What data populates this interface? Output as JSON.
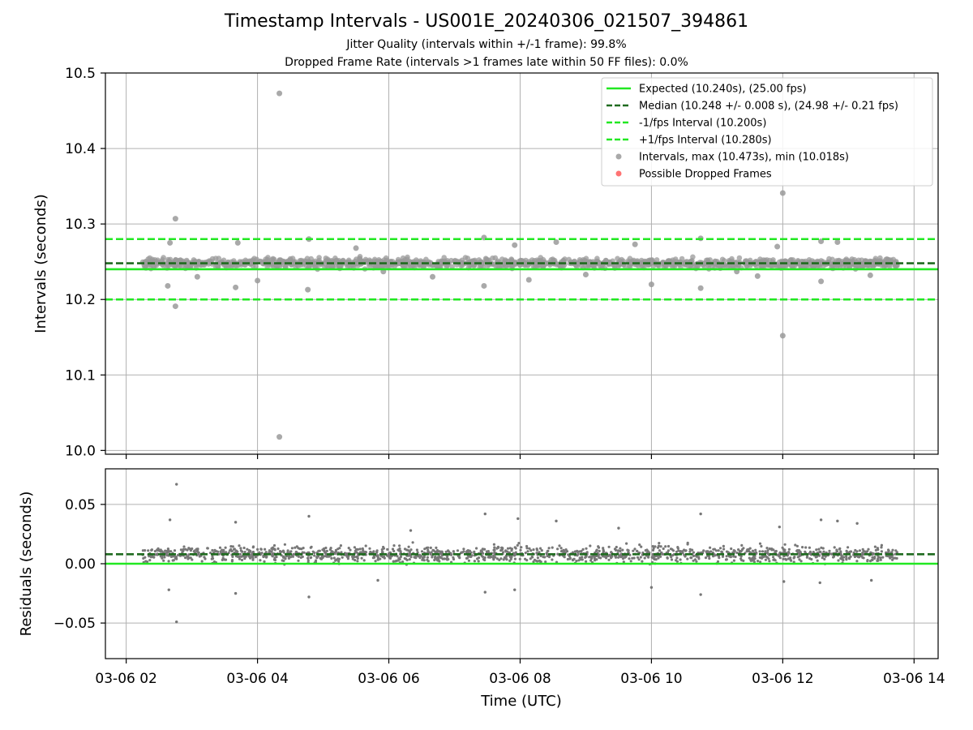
{
  "chart_data": [
    {
      "type": "scatter",
      "title": "Timestamp Intervals - US001E_20240306_021507_394861",
      "subtitles": [
        "Jitter Quality (intervals within +/-1 frame): 99.8%",
        "Dropped Frame Rate (intervals >1 frames late within 50 FF files): 0.0%"
      ],
      "xlabel": "",
      "ylabel": "Intervals (seconds)",
      "xlim": [
        "2024-03-06 01:41",
        "2024-03-06 14:22"
      ],
      "ylim": [
        9.995,
        10.5
      ],
      "x_ticks": [
        "2024-03-06 02:00",
        "2024-03-06 04:00",
        "2024-03-06 06:00",
        "2024-03-06 08:00",
        "2024-03-06 10:00",
        "2024-03-06 12:00",
        "2024-03-06 14:00"
      ],
      "y_ticks": [
        "10.0",
        "10.1",
        "10.2",
        "10.3",
        "10.4",
        "10.5"
      ],
      "grid": true,
      "legend_position": "top-right",
      "legend": [
        {
          "label": "Expected (10.240s), (25.00 fps)",
          "style": "solid",
          "color": "#22e822"
        },
        {
          "label": "Median (10.248 +/- 0.008 s), (24.98 +/- 0.21 fps)",
          "style": "dashed",
          "color": "#1f6b1f"
        },
        {
          "label": "-1/fps Interval (10.200s)",
          "style": "dashed",
          "color": "#22e822"
        },
        {
          "label": "+1/fps Interval (10.280s)",
          "style": "dashed",
          "color": "#22e822"
        },
        {
          "label": "Intervals, max (10.473s), min (10.018s)",
          "style": "marker",
          "color": "#9a9a9a"
        },
        {
          "label": "Possible Dropped Frames",
          "style": "marker",
          "color": "#ff5a5a"
        }
      ],
      "hlines": [
        {
          "name": "expected",
          "y": 10.24,
          "color": "#22e822",
          "style": "solid"
        },
        {
          "name": "median",
          "y": 10.248,
          "color": "#1f6b1f",
          "style": "dashed"
        },
        {
          "name": "minus-1-fps",
          "y": 10.2,
          "color": "#22e822",
          "style": "dashed"
        },
        {
          "name": "plus-1-fps",
          "y": 10.28,
          "color": "#22e822",
          "style": "dashed"
        }
      ],
      "scatter_band": {
        "x_start": "2024-03-06 02:15",
        "x_end": "2024-03-06 13:45",
        "center": 10.248,
        "half_width": 0.006,
        "count": 1300
      },
      "outliers": [
        {
          "x": "2024-03-06 04:20",
          "y": 10.473
        },
        {
          "x": "2024-03-06 04:20",
          "y": 10.018
        },
        {
          "x": "2024-03-06 12:00",
          "y": 10.341
        },
        {
          "x": "2024-03-06 12:00",
          "y": 10.152
        },
        {
          "x": "2024-03-06 02:45",
          "y": 10.307
        },
        {
          "x": "2024-03-06 02:45",
          "y": 10.191
        },
        {
          "x": "2024-03-06 02:40",
          "y": 10.275
        },
        {
          "x": "2024-03-06 02:38",
          "y": 10.218
        },
        {
          "x": "2024-03-06 03:42",
          "y": 10.275
        },
        {
          "x": "2024-03-06 03:40",
          "y": 10.216
        },
        {
          "x": "2024-03-06 04:47",
          "y": 10.28
        },
        {
          "x": "2024-03-06 04:46",
          "y": 10.213
        },
        {
          "x": "2024-03-06 07:27",
          "y": 10.282
        },
        {
          "x": "2024-03-06 07:27",
          "y": 10.218
        },
        {
          "x": "2024-03-06 08:33",
          "y": 10.276
        },
        {
          "x": "2024-03-06 10:00",
          "y": 10.22
        },
        {
          "x": "2024-03-06 10:45",
          "y": 10.281
        },
        {
          "x": "2024-03-06 10:45",
          "y": 10.215
        },
        {
          "x": "2024-03-06 12:35",
          "y": 10.277
        },
        {
          "x": "2024-03-06 12:35",
          "y": 10.224
        },
        {
          "x": "2024-03-06 12:50",
          "y": 10.276
        },
        {
          "x": "2024-03-06 03:05",
          "y": 10.23
        },
        {
          "x": "2024-03-06 04:00",
          "y": 10.225
        },
        {
          "x": "2024-03-06 06:40",
          "y": 10.23
        },
        {
          "x": "2024-03-06 09:00",
          "y": 10.233
        },
        {
          "x": "2024-03-06 11:55",
          "y": 10.27
        },
        {
          "x": "2024-03-06 11:37",
          "y": 10.231
        },
        {
          "x": "2024-03-06 05:30",
          "y": 10.268
        },
        {
          "x": "2024-03-06 09:45",
          "y": 10.273
        },
        {
          "x": "2024-03-06 08:08",
          "y": 10.226
        },
        {
          "x": "2024-03-06 11:18",
          "y": 10.237
        },
        {
          "x": "2024-03-06 13:20",
          "y": 10.232
        },
        {
          "x": "2024-03-06 05:55",
          "y": 10.237
        },
        {
          "x": "2024-03-06 07:55",
          "y": 10.272
        }
      ]
    },
    {
      "type": "scatter",
      "title": "",
      "xlabel": "Time (UTC)",
      "ylabel": "Residuals (seconds)",
      "xlim": [
        "2024-03-06 01:41",
        "2024-03-06 14:22"
      ],
      "ylim": [
        -0.08,
        0.08
      ],
      "x_ticks": [
        "2024-03-06 02:00",
        "2024-03-06 04:00",
        "2024-03-06 06:00",
        "2024-03-06 08:00",
        "2024-03-06 10:00",
        "2024-03-06 12:00",
        "2024-03-06 14:00"
      ],
      "x_tick_labels": [
        "03-06 02",
        "03-06 04",
        "03-06 06",
        "03-06 08",
        "03-06 10",
        "03-06 12",
        "03-06 14"
      ],
      "y_ticks": [
        -0.05,
        0.0,
        0.05
      ],
      "y_tick_labels": [
        "−0.05",
        "0.00",
        "0.05"
      ],
      "grid": true,
      "hlines": [
        {
          "name": "zero",
          "y": 0.0,
          "color": "#22e822",
          "style": "solid"
        },
        {
          "name": "median-residual",
          "y": 0.008,
          "color": "#1f6b1f",
          "style": "dashed"
        }
      ],
      "scatter_band": {
        "x_start": "2024-03-06 02:15",
        "x_end": "2024-03-06 13:45",
        "center": 0.008,
        "half_width": 0.006,
        "count": 1500
      },
      "outliers": [
        {
          "x": "2024-03-06 02:46",
          "y": 0.067
        },
        {
          "x": "2024-03-06 02:46",
          "y": -0.049
        },
        {
          "x": "2024-03-06 02:40",
          "y": 0.037
        },
        {
          "x": "2024-03-06 02:39",
          "y": -0.022
        },
        {
          "x": "2024-03-06 03:40",
          "y": 0.035
        },
        {
          "x": "2024-03-06 03:40",
          "y": -0.025
        },
        {
          "x": "2024-03-06 04:47",
          "y": 0.04
        },
        {
          "x": "2024-03-06 04:47",
          "y": -0.028
        },
        {
          "x": "2024-03-06 07:28",
          "y": 0.042
        },
        {
          "x": "2024-03-06 07:28",
          "y": -0.024
        },
        {
          "x": "2024-03-06 07:58",
          "y": 0.038
        },
        {
          "x": "2024-03-06 07:55",
          "y": -0.022
        },
        {
          "x": "2024-03-06 08:33",
          "y": 0.036
        },
        {
          "x": "2024-03-06 10:00",
          "y": -0.02
        },
        {
          "x": "2024-03-06 10:45",
          "y": 0.042
        },
        {
          "x": "2024-03-06 10:45",
          "y": -0.026
        },
        {
          "x": "2024-03-06 11:57",
          "y": 0.031
        },
        {
          "x": "2024-03-06 12:01",
          "y": -0.015
        },
        {
          "x": "2024-03-06 12:35",
          "y": 0.037
        },
        {
          "x": "2024-03-06 12:50",
          "y": 0.036
        },
        {
          "x": "2024-03-06 12:34",
          "y": -0.016
        },
        {
          "x": "2024-03-06 13:08",
          "y": 0.034
        },
        {
          "x": "2024-03-06 13:21",
          "y": -0.014
        },
        {
          "x": "2024-03-06 09:30",
          "y": 0.03
        },
        {
          "x": "2024-03-06 06:20",
          "y": 0.028
        },
        {
          "x": "2024-03-06 05:50",
          "y": -0.014
        }
      ]
    }
  ]
}
